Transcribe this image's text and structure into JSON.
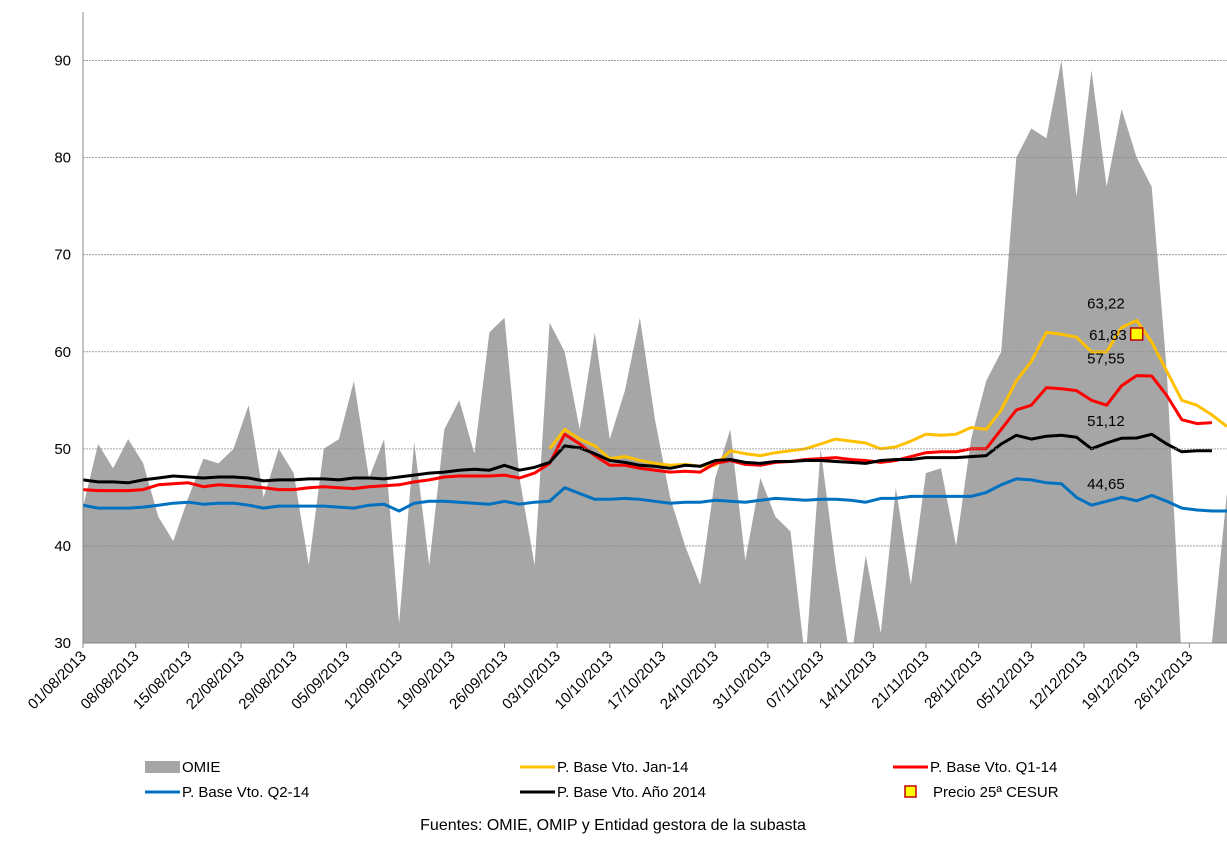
{
  "chart_data": {
    "type": "area-line",
    "footnote": "Fuentes: OMIE, OMIP y Entidad gestora de la subasta",
    "x": [
      "01/08/2013",
      "03/08/2013",
      "05/08/2013",
      "07/08/2013",
      "09/08/2013",
      "11/08/2013",
      "13/08/2013",
      "15/08/2013",
      "17/08/2013",
      "19/08/2013",
      "21/08/2013",
      "23/08/2013",
      "25/08/2013",
      "27/08/2013",
      "29/08/2013",
      "31/08/2013",
      "02/09/2013",
      "04/09/2013",
      "06/09/2013",
      "08/09/2013",
      "10/09/2013",
      "12/09/2013",
      "14/09/2013",
      "16/09/2013",
      "18/09/2013",
      "20/09/2013",
      "22/09/2013",
      "24/09/2013",
      "26/09/2013",
      "28/09/2013",
      "30/09/2013",
      "02/10/2013",
      "04/10/2013",
      "06/10/2013",
      "08/10/2013",
      "10/10/2013",
      "12/10/2013",
      "14/10/2013",
      "16/10/2013",
      "18/10/2013",
      "20/10/2013",
      "22/10/2013",
      "24/10/2013",
      "26/10/2013",
      "28/10/2013",
      "30/10/2013",
      "01/11/2013",
      "03/11/2013",
      "05/11/2013",
      "07/11/2013",
      "09/11/2013",
      "11/11/2013",
      "13/11/2013",
      "15/11/2013",
      "17/11/2013",
      "19/11/2013",
      "21/11/2013",
      "23/11/2013",
      "25/11/2013",
      "27/11/2013",
      "29/11/2013",
      "01/12/2013",
      "03/12/2013",
      "05/12/2013",
      "07/12/2013",
      "09/12/2013",
      "11/12/2013",
      "13/12/2013",
      "15/12/2013",
      "17/12/2013",
      "19/12/2013",
      "21/12/2013",
      "23/12/2013",
      "25/12/2013",
      "27/12/2013",
      "29/12/2013",
      "31/12/2013"
    ],
    "series": [
      {
        "name": "OMIE",
        "kind": "area",
        "color": "#a6a6a6",
        "values": [
          44,
          50.5,
          48,
          51,
          48.5,
          43,
          40.5,
          45,
          49,
          48.5,
          50,
          54.5,
          45,
          50,
          47.5,
          38,
          50,
          51,
          57,
          47,
          51,
          32,
          50.7,
          38,
          52,
          55,
          49.5,
          62,
          63.5,
          47,
          38,
          63,
          60,
          52,
          62,
          51,
          56,
          63.5,
          53,
          45,
          40,
          36,
          47,
          52,
          38.5,
          47,
          43,
          41.5,
          28,
          50,
          38,
          28,
          39,
          31,
          46,
          36,
          47.5,
          48,
          40,
          51,
          57,
          60,
          80,
          83,
          82,
          90,
          76,
          89,
          77,
          85,
          80,
          77,
          58,
          28,
          28,
          30,
          45.5
        ]
      },
      {
        "name": "P. Base Vto. Jan-14",
        "kind": "line",
        "color": "#ffc000",
        "values": [
          null,
          null,
          null,
          null,
          null,
          null,
          null,
          null,
          null,
          null,
          null,
          null,
          null,
          null,
          null,
          null,
          null,
          null,
          null,
          null,
          null,
          null,
          null,
          null,
          null,
          null,
          null,
          null,
          null,
          null,
          null,
          50,
          52,
          51,
          50.3,
          49,
          49.2,
          48.8,
          48.5,
          48.3,
          48.4,
          48.2,
          48.3,
          49.8,
          49.5,
          49.3,
          49.6,
          49.8,
          50,
          50.5,
          51,
          50.8,
          50.6,
          50,
          50.2,
          50.8,
          51.5,
          51.4,
          51.5,
          52.2,
          52,
          54,
          57,
          59,
          62,
          61.8,
          61.5,
          60,
          60,
          62.5,
          63.22,
          61,
          58,
          55,
          54.5,
          53.5,
          52.3
        ]
      },
      {
        "name": "P. Base Vto. Q1-14",
        "kind": "line",
        "color": "#ff0000",
        "values": [
          45.8,
          45.7,
          45.7,
          45.7,
          45.8,
          46.3,
          46.4,
          46.5,
          46.1,
          46.3,
          46.2,
          46.1,
          46,
          45.8,
          45.8,
          46,
          46.1,
          46,
          45.9,
          46.1,
          46.2,
          46.3,
          46.6,
          46.8,
          47.1,
          47.2,
          47.2,
          47.2,
          47.3,
          47,
          47.5,
          48.5,
          51.5,
          50.5,
          49.3,
          48.3,
          48.3,
          48,
          47.8,
          47.6,
          47.7,
          47.6,
          48.5,
          48.8,
          48.4,
          48.3,
          48.6,
          48.7,
          48.9,
          49,
          49.1,
          48.9,
          48.8,
          48.6,
          48.8,
          49.2,
          49.6,
          49.7,
          49.7,
          50,
          50,
          52,
          54,
          54.5,
          56.3,
          56.2,
          56,
          55,
          54.5,
          56.5,
          57.55,
          57.5,
          55.5,
          53,
          52.6,
          52.7,
          null
        ]
      },
      {
        "name": "P. Base Vto. Q2-14",
        "kind": "line",
        "color": "#0070c0",
        "values": [
          44.2,
          43.9,
          43.9,
          43.9,
          44,
          44.2,
          44.4,
          44.5,
          44.3,
          44.4,
          44.4,
          44.2,
          43.9,
          44.1,
          44.1,
          44.1,
          44.1,
          44,
          43.9,
          44.2,
          44.3,
          43.6,
          44.4,
          44.6,
          44.6,
          44.5,
          44.4,
          44.3,
          44.6,
          44.3,
          44.5,
          44.6,
          46,
          45.4,
          44.8,
          44.8,
          44.9,
          44.8,
          44.6,
          44.4,
          44.5,
          44.5,
          44.7,
          44.6,
          44.5,
          44.7,
          44.9,
          44.8,
          44.7,
          44.8,
          44.8,
          44.7,
          44.5,
          44.9,
          44.9,
          45.1,
          45.1,
          45.1,
          45.1,
          45.1,
          45.5,
          46.3,
          46.9,
          46.8,
          46.5,
          46.4,
          45,
          44.2,
          44.6,
          45,
          44.65,
          45.2,
          44.6,
          43.9,
          43.7,
          43.6,
          43.6
        ]
      },
      {
        "name": "P. Base Vto. Año 2014",
        "kind": "line",
        "color": "#000000",
        "values": [
          46.8,
          46.6,
          46.6,
          46.5,
          46.8,
          47,
          47.2,
          47.1,
          47,
          47.1,
          47.1,
          47,
          46.7,
          46.8,
          46.8,
          46.9,
          46.9,
          46.8,
          47,
          47,
          46.9,
          47.1,
          47.3,
          47.5,
          47.6,
          47.8,
          47.9,
          47.8,
          48.3,
          47.8,
          48.1,
          48.6,
          50.3,
          50.1,
          49.5,
          48.8,
          48.6,
          48.3,
          48.2,
          48,
          48.3,
          48.2,
          48.8,
          48.9,
          48.6,
          48.5,
          48.7,
          48.7,
          48.8,
          48.8,
          48.7,
          48.6,
          48.5,
          48.8,
          48.9,
          48.9,
          49.1,
          49.1,
          49.1,
          49.2,
          49.3,
          50.5,
          51.4,
          51,
          51.3,
          51.4,
          51.2,
          50,
          50.6,
          51.1,
          51.12,
          51.5,
          50.5,
          49.7,
          49.8,
          49.8,
          null
        ]
      },
      {
        "name": "Precio 25ª CESUR",
        "kind": "marker",
        "color": "#ffff00",
        "x": [
          "19/12/2013"
        ],
        "values": [
          61.83
        ],
        "value_labels": [
          "61,83"
        ]
      }
    ],
    "annotations": [
      {
        "text": "63,22",
        "x": "19/12/2013",
        "y": 63.22
      },
      {
        "text": "57,55",
        "x": "19/12/2013",
        "y": 57.55
      },
      {
        "text": "51,12",
        "x": "19/12/2013",
        "y": 51.12
      },
      {
        "text": "44,65",
        "x": "19/12/2013",
        "y": 44.65
      }
    ],
    "xlim": [
      "01/08/2013",
      "31/12/2013"
    ],
    "xticks": [
      "01/08/2013",
      "08/08/2013",
      "15/08/2013",
      "22/08/2013",
      "29/08/2013",
      "05/09/2013",
      "12/09/2013",
      "19/09/2013",
      "26/09/2013",
      "03/10/2013",
      "10/10/2013",
      "17/10/2013",
      "24/10/2013",
      "31/10/2013",
      "07/11/2013",
      "14/11/2013",
      "21/11/2013",
      "28/11/2013",
      "05/12/2013",
      "12/12/2013",
      "19/12/2013",
      "26/12/2013"
    ],
    "ylim": [
      30,
      95
    ],
    "yticks": [
      30,
      40,
      50,
      60,
      70,
      80,
      90
    ],
    "grid": true,
    "legend": "bottom"
  }
}
